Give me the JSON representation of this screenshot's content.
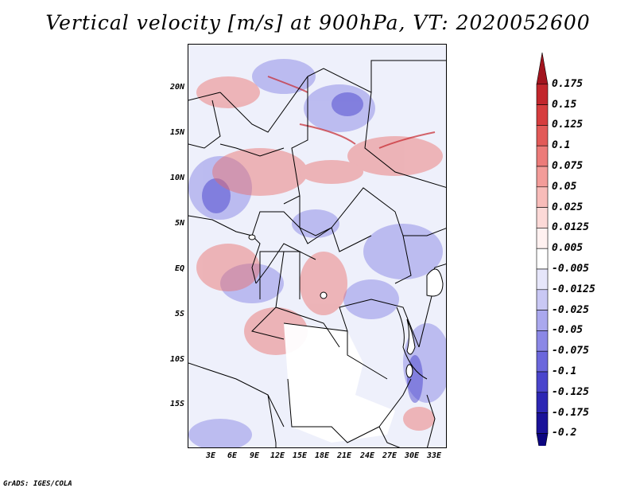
{
  "title": "Vertical velocity [m/s] at 900hPa, VT: 2020052600",
  "credit": "GrADS: IGES/COLA",
  "map": {
    "variable": "Vertical velocity",
    "units": "m/s",
    "level": "900hPa",
    "valid_time": "2020052600",
    "lat_labels": [
      "20N",
      "15N",
      "10N",
      "5N",
      "EQ",
      "5S",
      "10S",
      "15S"
    ],
    "lon_labels": [
      "3E",
      "6E",
      "9E",
      "12E",
      "15E",
      "18E",
      "21E",
      "24E",
      "27E",
      "30E",
      "33E"
    ]
  },
  "colorbar": {
    "labels": [
      "0.175",
      "0.15",
      "0.125",
      "0.1",
      "0.075",
      "0.05",
      "0.025",
      "0.0125",
      "0.005",
      "-0.005",
      "-0.0125",
      "-0.025",
      "-0.05",
      "-0.075",
      "-0.1",
      "-0.125",
      "-0.175",
      "-0.2"
    ],
    "colors": [
      "#a2141e",
      "#c2262c",
      "#d63d3e",
      "#e25a58",
      "#ec7b79",
      "#f39c99",
      "#f8bcb9",
      "#fcd9d7",
      "#fff1f0",
      "#ffffff",
      "#e6e6fa",
      "#c9c8f4",
      "#aaa8ee",
      "#8b88e6",
      "#6b67dc",
      "#4a45cc",
      "#2d27b4",
      "#1a1299",
      "#0c0580"
    ]
  }
}
